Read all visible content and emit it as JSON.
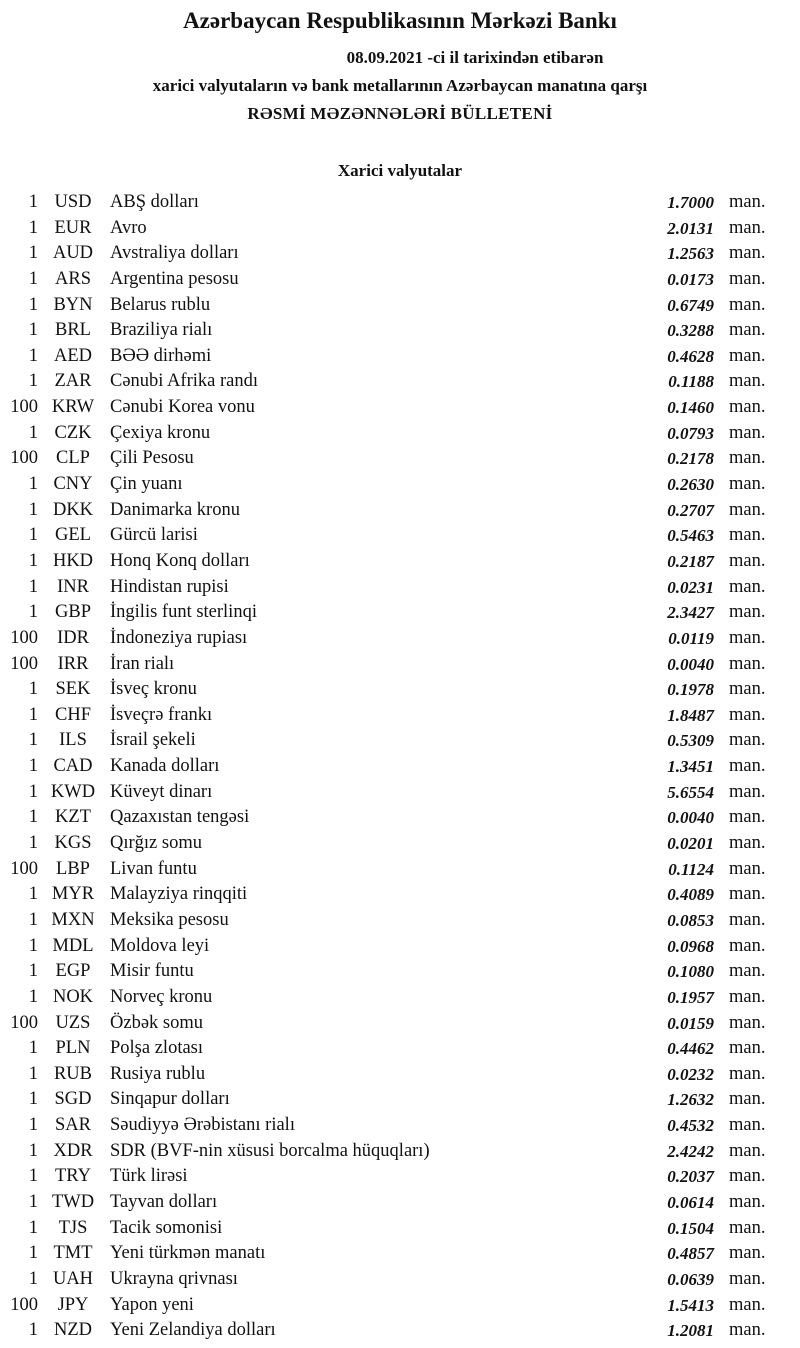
{
  "header": {
    "title": "Azərbaycan Respublikasının Mərkəzi Bankı",
    "date_line": "08.09.2021  -ci il tarixindən etibarən",
    "subtitle": "xarici valyutaların və bank metallarının Azərbaycan manatına qarşı",
    "bulletin": "RƏSMİ MƏZƏNNƏLƏRİ BÜLLETENİ"
  },
  "section_title": "Xarici valyutalar",
  "currencies": [
    {
      "qty": "1",
      "code": "USD",
      "name": "ABŞ dolları",
      "rate": "1.7000",
      "unit": "man."
    },
    {
      "qty": "1",
      "code": "EUR",
      "name": "Avro",
      "rate": "2.0131",
      "unit": "man."
    },
    {
      "qty": "1",
      "code": "AUD",
      "name": "Avstraliya dolları",
      "rate": "1.2563",
      "unit": "man."
    },
    {
      "qty": "1",
      "code": "ARS",
      "name": "Argentina pesosu",
      "rate": "0.0173",
      "unit": "man."
    },
    {
      "qty": "1",
      "code": "BYN",
      "name": "Belarus rublu",
      "rate": "0.6749",
      "unit": "man."
    },
    {
      "qty": "1",
      "code": "BRL",
      "name": "Braziliya rialı",
      "rate": "0.3288",
      "unit": "man."
    },
    {
      "qty": "1",
      "code": "AED",
      "name": "BƏƏ dirhəmi",
      "rate": "0.4628",
      "unit": "man."
    },
    {
      "qty": "1",
      "code": "ZAR",
      "name": "Cənubi Afrika randı",
      "rate": "0.1188",
      "unit": "man."
    },
    {
      "qty": "100",
      "code": "KRW",
      "name": "Cənubi Korea vonu",
      "rate": "0.1460",
      "unit": "man."
    },
    {
      "qty": "1",
      "code": "CZK",
      "name": "Çexiya kronu",
      "rate": "0.0793",
      "unit": "man."
    },
    {
      "qty": "100",
      "code": "CLP",
      "name": "Çili Pesosu",
      "rate": "0.2178",
      "unit": "man."
    },
    {
      "qty": "1",
      "code": "CNY",
      "name": "Çin yuanı",
      "rate": "0.2630",
      "unit": "man."
    },
    {
      "qty": "1",
      "code": "DKK",
      "name": "Danimarka kronu",
      "rate": "0.2707",
      "unit": "man."
    },
    {
      "qty": "1",
      "code": "GEL",
      "name": "Gürcü larisi",
      "rate": "0.5463",
      "unit": "man."
    },
    {
      "qty": "1",
      "code": "HKD",
      "name": "Honq Konq dolları",
      "rate": "0.2187",
      "unit": "man."
    },
    {
      "qty": "1",
      "code": "INR",
      "name": "Hindistan rupisi",
      "rate": "0.0231",
      "unit": "man."
    },
    {
      "qty": "1",
      "code": "GBP",
      "name": "İngilis funt sterlinqi",
      "rate": "2.3427",
      "unit": "man."
    },
    {
      "qty": "100",
      "code": "IDR",
      "name": "İndoneziya rupiası",
      "rate": "0.0119",
      "unit": "man."
    },
    {
      "qty": "100",
      "code": "IRR",
      "name": "İran rialı",
      "rate": "0.0040",
      "unit": "man."
    },
    {
      "qty": "1",
      "code": "SEK",
      "name": "İsveç kronu",
      "rate": "0.1978",
      "unit": "man."
    },
    {
      "qty": "1",
      "code": "CHF",
      "name": "İsveçrə frankı",
      "rate": "1.8487",
      "unit": "man."
    },
    {
      "qty": "1",
      "code": "ILS",
      "name": "İsrail şekeli",
      "rate": "0.5309",
      "unit": "man."
    },
    {
      "qty": "1",
      "code": "CAD",
      "name": "Kanada dolları",
      "rate": "1.3451",
      "unit": "man."
    },
    {
      "qty": "1",
      "code": "KWD",
      "name": "Küveyt dinarı",
      "rate": "5.6554",
      "unit": "man."
    },
    {
      "qty": "1",
      "code": "KZT",
      "name": "Qazaxıstan tengəsi",
      "rate": "0.0040",
      "unit": "man."
    },
    {
      "qty": "1",
      "code": "KGS",
      "name": "Qırğız somu",
      "rate": "0.0201",
      "unit": "man."
    },
    {
      "qty": "100",
      "code": "LBP",
      "name": "Livan funtu",
      "rate": "0.1124",
      "unit": "man."
    },
    {
      "qty": "1",
      "code": "MYR",
      "name": "Malayziya rinqqiti",
      "rate": "0.4089",
      "unit": "man."
    },
    {
      "qty": "1",
      "code": "MXN",
      "name": "Meksika pesosu",
      "rate": "0.0853",
      "unit": "man."
    },
    {
      "qty": "1",
      "code": "MDL",
      "name": "Moldova leyi",
      "rate": "0.0968",
      "unit": "man."
    },
    {
      "qty": "1",
      "code": "EGP",
      "name": "Misir funtu",
      "rate": "0.1080",
      "unit": "man."
    },
    {
      "qty": "1",
      "code": "NOK",
      "name": "Norveç kronu",
      "rate": "0.1957",
      "unit": "man."
    },
    {
      "qty": "100",
      "code": "UZS",
      "name": "Özbək somu",
      "rate": "0.0159",
      "unit": "man."
    },
    {
      "qty": "1",
      "code": "PLN",
      "name": "Polşa zlotası",
      "rate": "0.4462",
      "unit": "man."
    },
    {
      "qty": "1",
      "code": "RUB",
      "name": "Rusiya rublu",
      "rate": "0.0232",
      "unit": "man."
    },
    {
      "qty": "1",
      "code": "SGD",
      "name": "Sinqapur dolları",
      "rate": "1.2632",
      "unit": "man."
    },
    {
      "qty": "1",
      "code": "SAR",
      "name": "Səudiyyə Ərəbistanı rialı",
      "rate": "0.4532",
      "unit": "man."
    },
    {
      "qty": "1",
      "code": "XDR",
      "name": "SDR (BVF-nin xüsusi borcalma hüquqları)",
      "rate": "2.4242",
      "unit": "man."
    },
    {
      "qty": "1",
      "code": "TRY",
      "name": "Türk lirəsi",
      "rate": "0.2037",
      "unit": "man."
    },
    {
      "qty": "1",
      "code": "TWD",
      "name": "Tayvan dolları",
      "rate": "0.0614",
      "unit": "man."
    },
    {
      "qty": "1",
      "code": "TJS",
      "name": "Tacik somonisi",
      "rate": "0.1504",
      "unit": "man."
    },
    {
      "qty": "1",
      "code": "TMT",
      "name": "Yeni türkmən manatı",
      "rate": "0.4857",
      "unit": "man."
    },
    {
      "qty": "1",
      "code": "UAH",
      "name": "Ukrayna qrivnası",
      "rate": "0.0639",
      "unit": "man."
    },
    {
      "qty": "100",
      "code": "JPY",
      "name": "Yapon yeni",
      "rate": "1.5413",
      "unit": "man."
    },
    {
      "qty": "1",
      "code": "NZD",
      "name": "Yeni Zelandiya dolları",
      "rate": "1.2081",
      "unit": "man."
    }
  ]
}
